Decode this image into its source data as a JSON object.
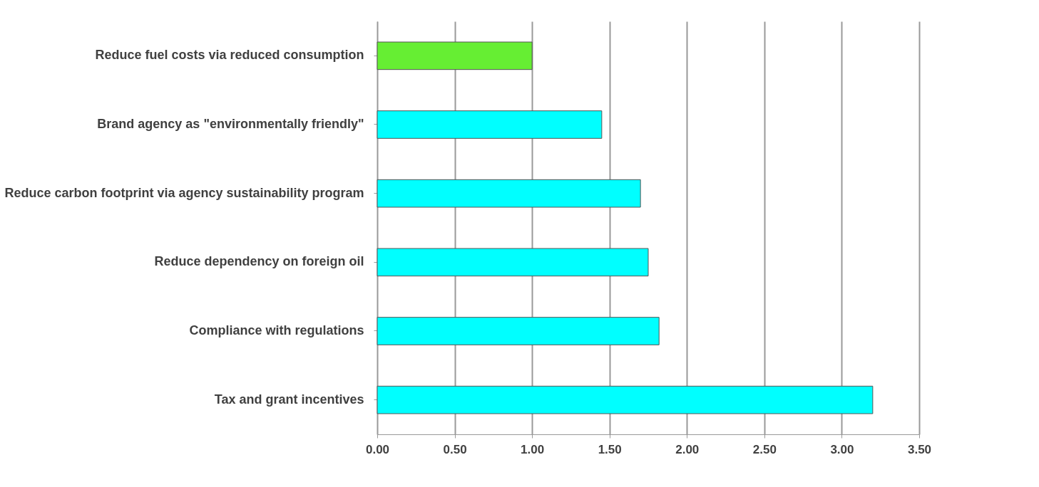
{
  "chart_data": {
    "type": "bar",
    "orientation": "horizontal",
    "categories": [
      "Reduce fuel costs via reduced consumption",
      "Brand agency as \"environmentally friendly\"",
      "Reduce carbon footprint via agency sustainability program",
      "Reduce dependency on foreign oil",
      "Compliance with regulations",
      "Tax and grant incentives"
    ],
    "values": [
      1.0,
      1.45,
      1.7,
      1.75,
      1.82,
      3.2
    ],
    "colors": [
      "#66ee33",
      "#00ffff",
      "#00ffff",
      "#00ffff",
      "#00ffff",
      "#00ffff"
    ],
    "xlim": [
      0,
      3.5
    ],
    "xticks": [
      {
        "value": 0,
        "label": "0.00"
      },
      {
        "value": 0.5,
        "label": "0.50"
      },
      {
        "value": 1,
        "label": "1.00"
      },
      {
        "value": 1.5,
        "label": "1.50"
      },
      {
        "value": 2,
        "label": "2.00"
      },
      {
        "value": 2.5,
        "label": "2.50"
      },
      {
        "value": 3,
        "label": "3.00"
      },
      {
        "value": 3.5,
        "label": "3.50"
      }
    ],
    "grid": "x"
  }
}
